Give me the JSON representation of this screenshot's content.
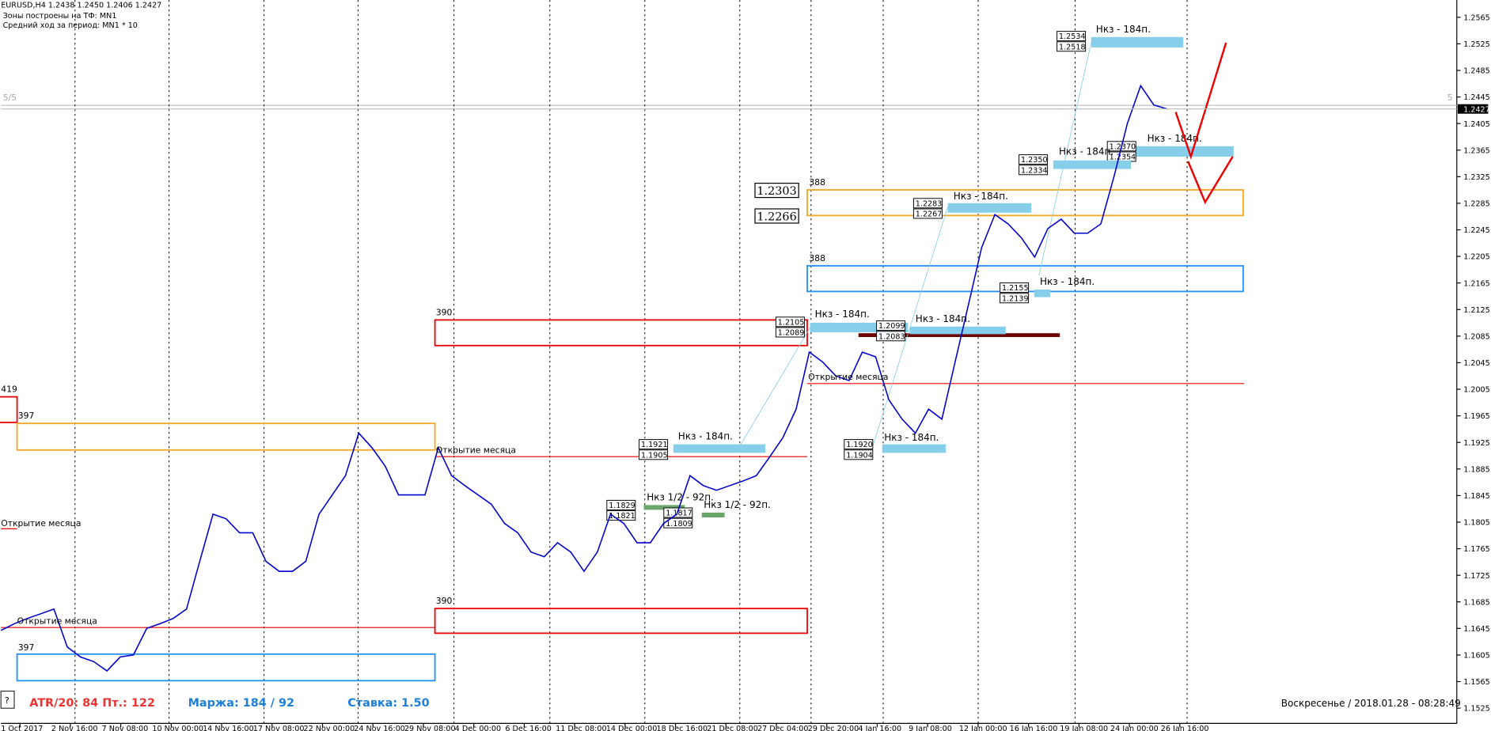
{
  "header": {
    "lines": [
      "EURUSD,H4  1.2438 1.2450 1.2406 1.2427",
      "Зоны построены на ТФ: MN1",
      "Средний ход за период: MN1 * 10"
    ]
  },
  "indicator": {
    "left": "5/5",
    "right": "5"
  },
  "price_chart": {
    "ylim": [
      1.1502,
      1.2591
    ],
    "yticks": [
      1.2565,
      1.2525,
      1.2485,
      1.2445,
      1.2405,
      1.2365,
      1.2325,
      1.2285,
      1.2245,
      1.2205,
      1.2165,
      1.2125,
      1.2085,
      1.2045,
      1.2005,
      1.1965,
      1.1925,
      1.1885,
      1.1845,
      1.1805,
      1.1765,
      1.1725,
      1.1685,
      1.1645,
      1.1605,
      1.1565,
      1.1525
    ],
    "current_price": 1.2427,
    "closes": [
      1.1642,
      1.1652,
      1.166,
      1.1667,
      1.1674,
      1.1617,
      1.1602,
      1.1595,
      1.1581,
      1.1602,
      1.1605,
      1.1645,
      1.1652,
      1.166,
      1.1674,
      1.1746,
      1.1817,
      1.181,
      1.1789,
      1.1789,
      1.1746,
      1.1731,
      1.1731,
      1.1746,
      1.1817,
      1.1846,
      1.1875,
      1.1939,
      1.1917,
      1.1889,
      1.1846,
      1.1846,
      1.1846,
      1.1917,
      1.1875,
      1.186,
      1.1846,
      1.1832,
      1.1803,
      1.1789,
      1.176,
      1.1753,
      1.1774,
      1.176,
      1.1731,
      1.176,
      1.1817,
      1.1803,
      1.1774,
      1.1774,
      1.1803,
      1.1817,
      1.1875,
      1.186,
      1.1853,
      1.186,
      1.1867,
      1.1875,
      1.1903,
      1.1932,
      1.1975,
      1.2061,
      1.2046,
      1.2025,
      1.2018,
      1.2061,
      1.2054,
      1.1989,
      1.196,
      1.1939,
      1.1975,
      1.196,
      1.2046,
      1.2132,
      1.2218,
      1.2268,
      1.2254,
      1.2233,
      1.2204,
      1.2247,
      1.2261,
      1.224,
      1.224,
      1.2254,
      1.2326,
      1.2405,
      1.2462,
      1.2433,
      1.2427
    ]
  },
  "x_labels": [
    "1 Oct 2017",
    "2 Nov 16:00",
    "7 Nov 08:00",
    "10 Nov 00:00",
    "14 Nov 16:00",
    "17 Nov 08:00",
    "22 Nov 00:00",
    "24 Nov 16:00",
    "29 Nov 08:00",
    "4 Dec 00:00",
    "6 Dec 16:00",
    "11 Dec 08:00",
    "14 Dec 00:00",
    "18 Dec 16:00",
    "21 Dec 08:00",
    "27 Dec 04:00",
    "29 Dec 20:00",
    "4 Jan 16:00",
    "9 Jan 08:00",
    "12 Jan 00:00",
    "16 Jan 16:00",
    "19 Jan 08:00",
    "24 Jan 00:00",
    "26 Jan 16:00"
  ],
  "levels": [
    {
      "prices": [
        "1.2534",
        "1.2518"
      ],
      "label": "Нкз - 184п."
    },
    {
      "prices": [
        "1.2370",
        "1.2354"
      ],
      "label": "Нкз - 184п."
    },
    {
      "prices": [
        "1.2350",
        "1.2334"
      ],
      "label": "Нкз - 184п."
    },
    {
      "prices": [
        "1.2283",
        "1.2267"
      ],
      "label": "Нкз - 184п."
    },
    {
      "prices": [
        "1.2155",
        "1.2139"
      ],
      "label": "Нкз - 184п."
    },
    {
      "prices": [
        "1.2105",
        "1.2089"
      ],
      "label": "Нкз - 184п."
    },
    {
      "prices": [
        "1.2099",
        "1.2083"
      ],
      "label": "Нкз - 184п."
    },
    {
      "prices": [
        "1.1921",
        "1.1905"
      ],
      "label": "Нкз - 184п."
    },
    {
      "prices": [
        "1.1920",
        "1.1904"
      ],
      "label": "Нкз - 184п."
    },
    {
      "prices": [
        "1.1829",
        "1.1821"
      ],
      "label": "Нкз 1/2 - 92п."
    },
    {
      "prices": [
        "1.1817",
        "1.1809"
      ],
      "label": "Нкз 1/2 - 92п."
    }
  ],
  "zones": [
    {
      "label": "388"
    },
    {
      "label": "388"
    },
    {
      "label": "390"
    },
    {
      "label": "419"
    },
    {
      "label": "397"
    },
    {
      "label": "390"
    },
    {
      "label": "397"
    }
  ],
  "zone_prices": [
    "1.2303",
    "1.2266"
  ],
  "month_open": [
    "Открытие месяца",
    "Открытие месяца",
    "Открытие месяца",
    "Открытие месяца"
  ],
  "footer": {
    "help": "?",
    "atr": "ATR/20: 84  Пт.: 122",
    "margin": "Маржа: 184 / 92",
    "rate": "Ставка: 1.50",
    "datetime": "Воскресенье  /  2018.01.28  -  08:28:49"
  }
}
